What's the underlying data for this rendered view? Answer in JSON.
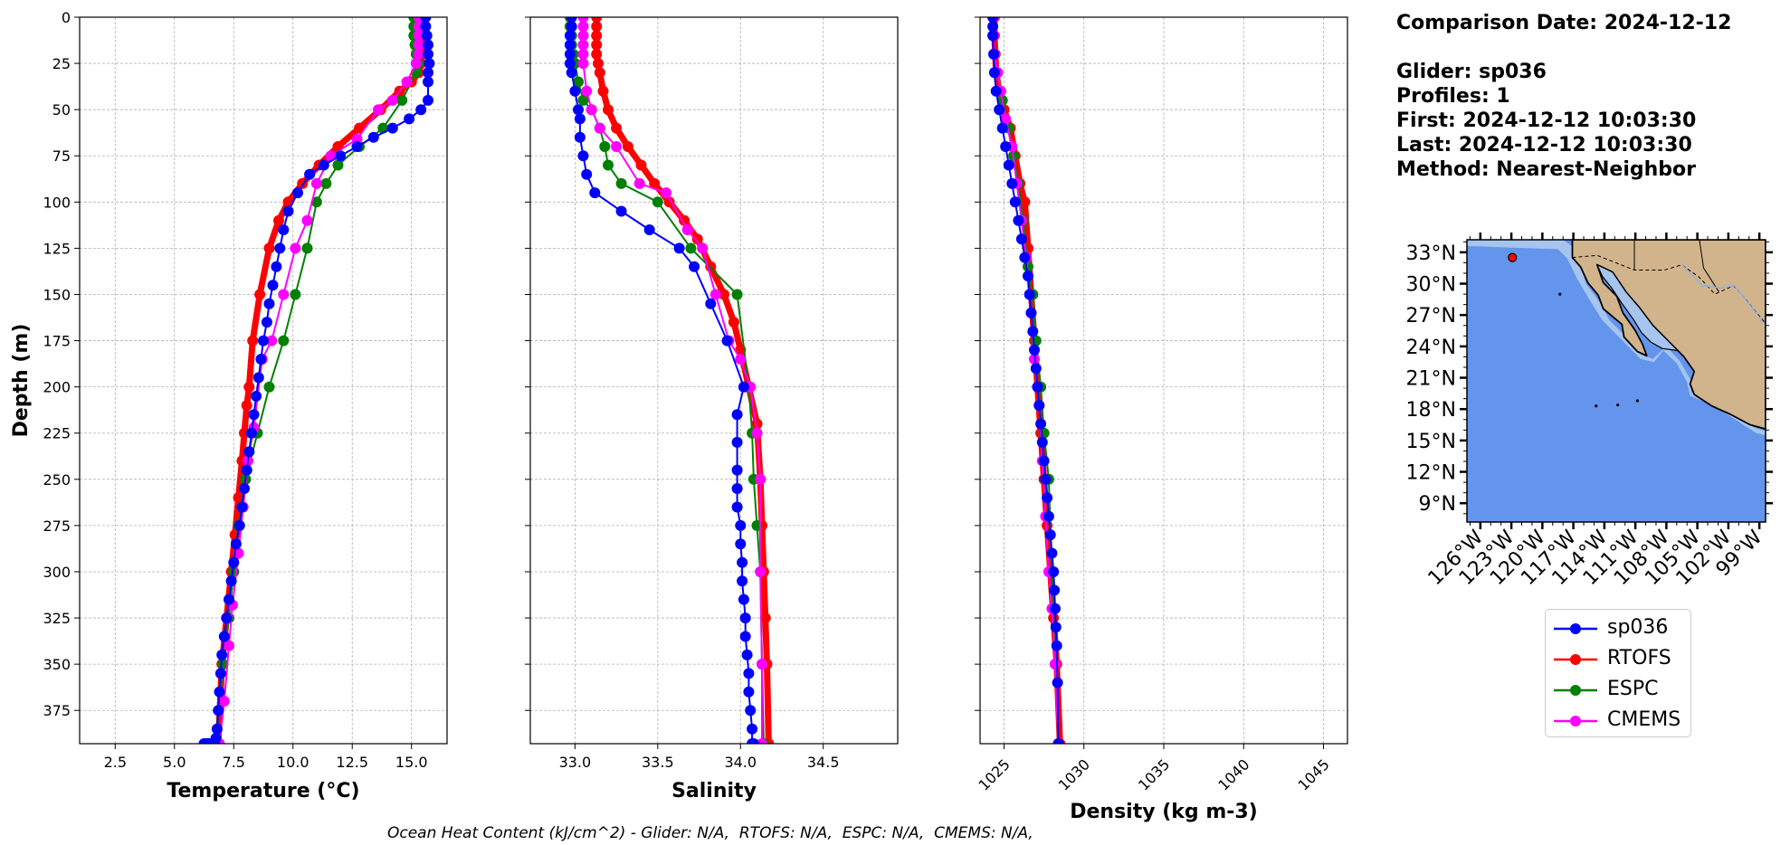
{
  "info": {
    "comparison_date": "Comparison Date: 2024-12-12",
    "glider": "Glider: sp036",
    "profiles": "Profiles: 1",
    "first": "First: 2024-12-12 10:03:30",
    "last": "Last: 2024-12-12 10:03:30",
    "method": "Method: Nearest-Neighbor"
  },
  "caption": "Ocean Heat Content (kJ/cm^2) - Glider: N/A,  RTOFS: N/A,  ESPC: N/A,  CMEMS: N/A,",
  "colors": {
    "sp036": "#0000ff",
    "RTOFS": "#ff0000",
    "ESPC": "#008000",
    "CMEMS": "#ff00ff",
    "ocean": "#6495ed",
    "land": "#d2b48c",
    "shelf": "#a6c4ee"
  },
  "legend": [
    "sp036",
    "RTOFS",
    "ESPC",
    "CMEMS"
  ],
  "chart_data": [
    {
      "type": "line",
      "xlabel": "Temperature (°C)",
      "ylabel": "Depth (m)",
      "xlim": [
        1.0,
        16.5
      ],
      "ylim": [
        393,
        0
      ],
      "xticks": [
        "2.5",
        "5.0",
        "7.5",
        "10.0",
        "12.5",
        "15.0"
      ],
      "yticks": [
        "0",
        "25",
        "50",
        "75",
        "100",
        "125",
        "150",
        "175",
        "200",
        "225",
        "250",
        "275",
        "300",
        "325",
        "350",
        "375"
      ],
      "grid": true,
      "series": [
        {
          "name": "sp036",
          "x": [
            15.6,
            15.6,
            15.65,
            15.7,
            15.7,
            15.75,
            15.7,
            15.7,
            15.7,
            15.4,
            14.9,
            14.2,
            13.4,
            12.7,
            12.0,
            11.3,
            10.7,
            10.2,
            9.8,
            9.6,
            9.45,
            9.3,
            9.15,
            9.0,
            8.9,
            8.75,
            8.65,
            8.55,
            8.45,
            8.35,
            8.25,
            8.15,
            8.05,
            7.95,
            7.85,
            7.75,
            7.6,
            7.5,
            7.4,
            7.3,
            7.2,
            7.1,
            7.0,
            6.95,
            6.9,
            6.85,
            6.8,
            6.75,
            6.7,
            6.65,
            6.6,
            6.55,
            6.5,
            6.45,
            6.4,
            6.35,
            6.3,
            6.25
          ],
          "y": [
            0,
            5,
            10,
            15,
            20,
            25,
            30,
            35,
            45,
            50,
            55,
            60,
            65,
            70,
            75,
            80,
            85,
            95,
            105,
            115,
            125,
            135,
            145,
            155,
            165,
            175,
            185,
            195,
            205,
            215,
            225,
            235,
            245,
            255,
            265,
            275,
            285,
            295,
            305,
            315,
            325,
            335,
            345,
            355,
            365,
            375,
            385,
            390,
            393,
            393,
            393,
            393,
            393,
            393,
            393,
            393,
            393,
            393
          ]
        },
        {
          "name": "RTOFS",
          "x": [
            15.45,
            15.45,
            15.45,
            15.45,
            15.45,
            15.4,
            15.3,
            15.0,
            14.5,
            13.7,
            12.8,
            11.9,
            11.1,
            10.4,
            9.8,
            9.4,
            9.0,
            8.6,
            8.3,
            8.15,
            8.05,
            7.95,
            7.85,
            7.7,
            7.55,
            7.4,
            7.2,
            7.0,
            6.85
          ],
          "y": [
            0,
            5,
            10,
            15,
            20,
            25,
            30,
            35,
            40,
            50,
            60,
            70,
            80,
            90,
            100,
            110,
            125,
            150,
            175,
            200,
            210,
            225,
            240,
            260,
            280,
            300,
            325,
            350,
            393
          ]
        },
        {
          "name": "ESPC",
          "x": [
            15.1,
            15.1,
            15.1,
            15.15,
            15.2,
            15.3,
            15.2,
            14.6,
            13.8,
            12.8,
            11.9,
            11.4,
            11.0,
            10.6,
            10.1,
            9.6,
            9.0,
            8.5,
            8.0,
            7.7,
            7.5,
            7.3,
            7.05,
            6.8
          ],
          "y": [
            0,
            5,
            10,
            15,
            20,
            25,
            30,
            45,
            60,
            70,
            80,
            90,
            100,
            125,
            150,
            175,
            200,
            225,
            250,
            275,
            300,
            325,
            350,
            393
          ]
        },
        {
          "name": "CMEMS",
          "x": [
            15.3,
            15.3,
            15.3,
            15.3,
            15.3,
            15.2,
            14.8,
            14.2,
            13.6,
            12.7,
            11.6,
            11.0,
            10.6,
            10.1,
            9.6,
            9.1,
            8.7,
            8.35,
            8.1,
            7.9,
            7.7,
            7.45,
            7.3,
            7.1,
            6.9
          ],
          "y": [
            0,
            5,
            10,
            15,
            20,
            25,
            35,
            45,
            50,
            66,
            75,
            90,
            110,
            125,
            150,
            175,
            185,
            222,
            240,
            265,
            290,
            318,
            340,
            370,
            393
          ]
        }
      ]
    },
    {
      "type": "line",
      "xlabel": "Salinity",
      "xlim": [
        32.73,
        34.95
      ],
      "ylim": [
        393,
        0
      ],
      "xticks": [
        "33.0",
        "33.5",
        "34.0",
        "34.5"
      ],
      "grid": true,
      "series": [
        {
          "name": "sp036",
          "x": [
            32.98,
            32.98,
            32.97,
            32.97,
            32.97,
            32.97,
            32.98,
            33.0,
            33.02,
            33.03,
            33.03,
            33.05,
            33.07,
            33.12,
            33.28,
            33.45,
            33.63,
            33.72,
            33.82,
            33.92,
            34.02,
            33.98,
            33.98,
            33.98,
            33.98,
            33.98,
            34.0,
            34.0,
            34.01,
            34.01,
            34.02,
            34.03,
            34.03,
            34.04,
            34.05,
            34.05,
            34.06,
            34.07,
            34.07,
            34.08
          ],
          "y": [
            0,
            5,
            10,
            15,
            20,
            25,
            30,
            40,
            50,
            55,
            65,
            75,
            85,
            95,
            105,
            115,
            125,
            135,
            155,
            175,
            200,
            215,
            230,
            245,
            255,
            265,
            275,
            285,
            295,
            305,
            315,
            325,
            335,
            345,
            355,
            365,
            375,
            385,
            393,
            393
          ]
        },
        {
          "name": "RTOFS",
          "x": [
            33.13,
            33.13,
            33.13,
            33.13,
            33.13,
            33.14,
            33.15,
            33.17,
            33.2,
            33.25,
            33.32,
            33.4,
            33.48,
            33.57,
            33.66,
            33.74,
            33.82,
            33.9,
            33.96,
            34.0,
            34.05,
            34.1,
            34.12,
            34.13,
            34.14,
            34.15,
            34.16,
            34.17
          ],
          "y": [
            0,
            5,
            10,
            15,
            20,
            25,
            30,
            40,
            50,
            60,
            70,
            80,
            90,
            100,
            110,
            120,
            135,
            150,
            165,
            180,
            200,
            220,
            250,
            275,
            300,
            325,
            350,
            393
          ]
        },
        {
          "name": "ESPC",
          "x": [
            32.97,
            32.97,
            32.98,
            32.98,
            32.99,
            33.0,
            33.02,
            33.05,
            33.1,
            33.15,
            33.18,
            33.2,
            33.28,
            33.5,
            33.7,
            33.98,
            34.05,
            34.07,
            34.08,
            34.1,
            34.12,
            34.13,
            34.14
          ],
          "y": [
            0,
            5,
            10,
            15,
            20,
            25,
            35,
            45,
            50,
            60,
            70,
            80,
            90,
            100,
            125,
            150,
            200,
            225,
            250,
            275,
            300,
            350,
            393
          ]
        },
        {
          "name": "CMEMS",
          "x": [
            33.05,
            33.05,
            33.05,
            33.05,
            33.05,
            33.05,
            33.07,
            33.1,
            33.15,
            33.25,
            33.39,
            33.55,
            33.68,
            33.77,
            33.85,
            33.93,
            34.0,
            34.06,
            34.1,
            34.12,
            34.12,
            34.13,
            34.13
          ],
          "y": [
            0,
            5,
            10,
            15,
            20,
            25,
            40,
            50,
            60,
            70,
            90,
            95,
            115,
            125,
            150,
            175,
            185,
            200,
            225,
            250,
            300,
            350,
            393
          ]
        }
      ]
    },
    {
      "type": "line",
      "xlabel": "Density (kg m-3)",
      "xlim": [
        1023.5,
        1046.5
      ],
      "ylim": [
        393,
        0
      ],
      "xticks": [
        "1025",
        "1030",
        "1035",
        "1040",
        "1045"
      ],
      "grid": true,
      "series": [
        {
          "name": "sp036",
          "x": [
            1024.3,
            1024.3,
            1024.3,
            1024.35,
            1024.4,
            1024.5,
            1024.7,
            1024.9,
            1025.1,
            1025.3,
            1025.5,
            1025.7,
            1025.9,
            1026.1,
            1026.3,
            1026.5,
            1026.6,
            1026.7,
            1026.8,
            1026.9,
            1027.0,
            1027.1,
            1027.2,
            1027.3,
            1027.4,
            1027.5,
            1027.6,
            1027.7,
            1027.8,
            1027.9,
            1028.0,
            1028.1,
            1028.15,
            1028.2,
            1028.25,
            1028.3,
            1028.35,
            1028.4
          ],
          "y": [
            0,
            5,
            10,
            20,
            30,
            40,
            50,
            60,
            70,
            80,
            90,
            100,
            110,
            120,
            130,
            140,
            150,
            160,
            170,
            180,
            190,
            200,
            210,
            220,
            230,
            240,
            250,
            260,
            270,
            280,
            290,
            300,
            310,
            320,
            330,
            340,
            360,
            393
          ]
        },
        {
          "name": "RTOFS",
          "x": [
            1024.4,
            1024.4,
            1024.45,
            1024.5,
            1024.7,
            1025.0,
            1025.4,
            1025.7,
            1026.0,
            1026.3,
            1026.5,
            1026.7,
            1026.9,
            1027.1,
            1027.3,
            1027.5,
            1027.7,
            1027.9,
            1028.1,
            1028.3,
            1028.5
          ],
          "y": [
            0,
            10,
            20,
            30,
            40,
            50,
            60,
            75,
            90,
            100,
            125,
            150,
            175,
            200,
            225,
            250,
            275,
            300,
            325,
            350,
            393
          ]
        },
        {
          "name": "ESPC",
          "x": [
            1024.3,
            1024.3,
            1024.4,
            1024.6,
            1024.9,
            1025.3,
            1025.6,
            1025.9,
            1026.2,
            1026.5,
            1026.8,
            1027.0,
            1027.3,
            1027.5,
            1027.8,
            1028.0,
            1028.2,
            1028.4
          ],
          "y": [
            0,
            10,
            20,
            30,
            45,
            60,
            75,
            90,
            110,
            135,
            150,
            175,
            200,
            225,
            250,
            300,
            350,
            393
          ]
        },
        {
          "name": "CMEMS",
          "x": [
            1024.35,
            1024.35,
            1024.4,
            1024.6,
            1024.8,
            1025.1,
            1025.5,
            1025.8,
            1026.1,
            1026.4,
            1026.7,
            1026.9,
            1027.2,
            1027.4,
            1027.6,
            1027.8,
            1028.0,
            1028.2,
            1028.4
          ],
          "y": [
            0,
            10,
            20,
            30,
            40,
            55,
            70,
            90,
            110,
            130,
            160,
            185,
            210,
            240,
            270,
            300,
            320,
            350,
            393
          ]
        }
      ]
    }
  ],
  "map": {
    "lat_ticks": [
      "33°N",
      "30°N",
      "27°N",
      "24°N",
      "21°N",
      "18°N",
      "15°N",
      "12°N",
      "9°N"
    ],
    "lon_ticks": [
      "126°W",
      "123°W",
      "120°W",
      "117°W",
      "114°W",
      "111°W",
      "108°W",
      "105°W",
      "102°W",
      "99°W"
    ],
    "lat_range": [
      7.2,
      34.2
    ],
    "lon_range": [
      -127.3,
      -98.4
    ],
    "glider_position": {
      "lon": -122.9,
      "lat": 32.5
    }
  }
}
